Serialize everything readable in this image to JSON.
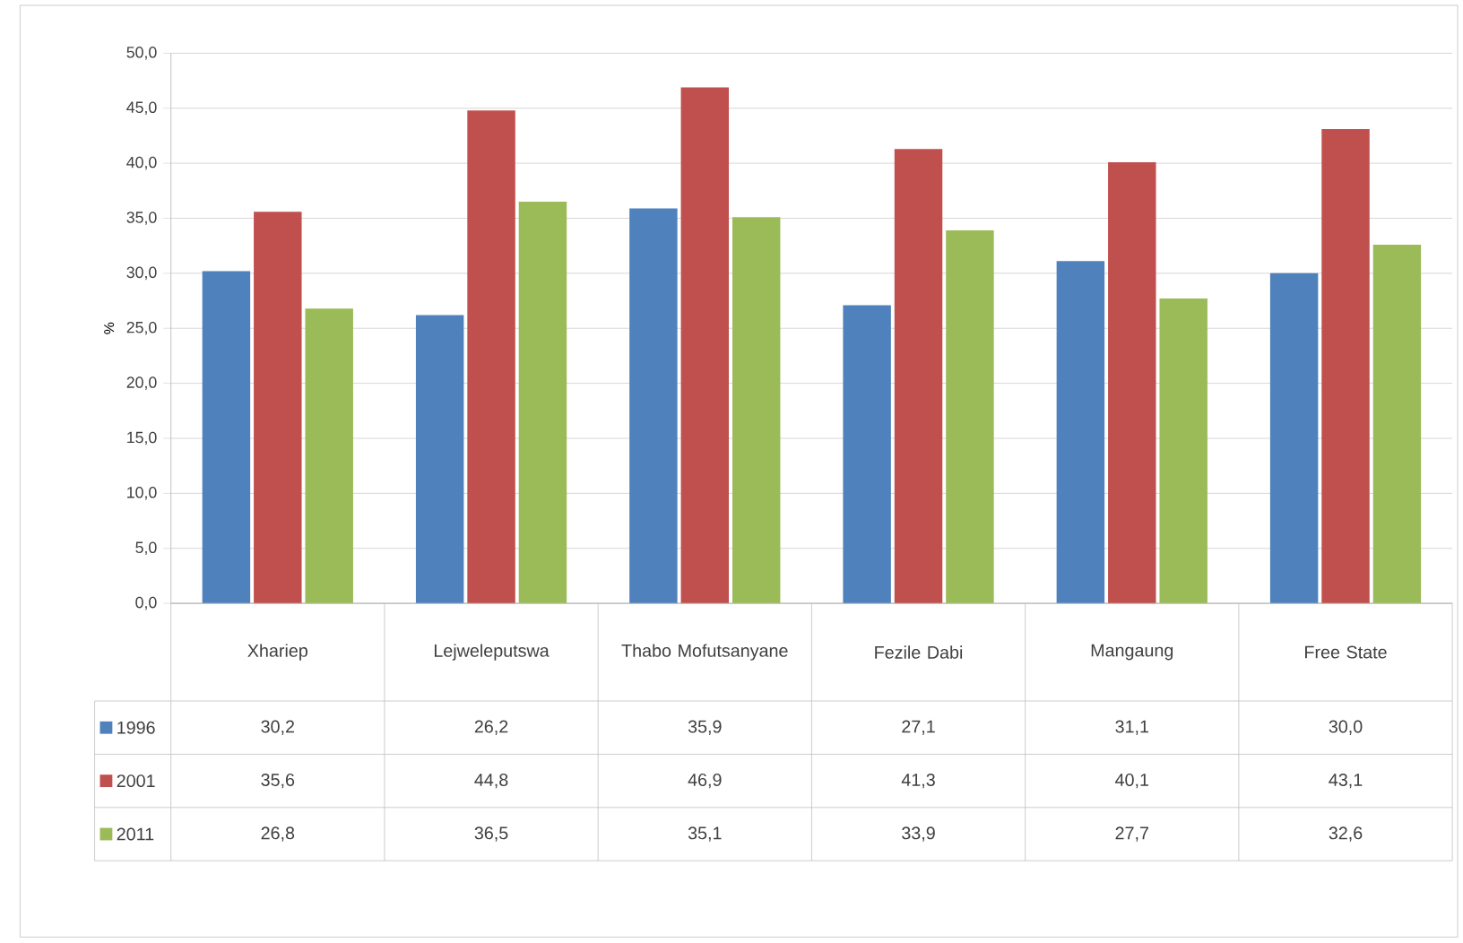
{
  "chart_data": {
    "type": "bar",
    "ylabel": "%",
    "categories": [
      "Xhariep",
      "Lejweleputswa",
      "Thabo Mofutsanyane",
      "Fezile Dabi",
      "Mangaung",
      "Free State"
    ],
    "series": [
      {
        "name": "1996",
        "color": "#4f81bd",
        "values": [
          30.2,
          26.2,
          35.9,
          27.1,
          31.1,
          30.0
        ],
        "value_labels": [
          "30,2",
          "26,2",
          "35,9",
          "27,1",
          "31,1",
          "30,0"
        ]
      },
      {
        "name": "2001",
        "color": "#c0504d",
        "values": [
          35.6,
          44.8,
          46.9,
          41.3,
          40.1,
          43.1
        ],
        "value_labels": [
          "35,6",
          "44,8",
          "46,9",
          "41,3",
          "40,1",
          "43,1"
        ]
      },
      {
        "name": "2011",
        "color": "#9bbb59",
        "values": [
          26.8,
          36.5,
          35.1,
          33.9,
          27.7,
          32.6
        ],
        "value_labels": [
          "26,8",
          "36,5",
          "35,1",
          "33,9",
          "27,7",
          "32,6"
        ]
      }
    ],
    "ylim": [
      0,
      50
    ],
    "yticks": [
      {
        "value": 0,
        "label": "0,0"
      },
      {
        "value": 5,
        "label": "5,0"
      },
      {
        "value": 10,
        "label": "10,0"
      },
      {
        "value": 15,
        "label": "15,0"
      },
      {
        "value": 20,
        "label": "20,0"
      },
      {
        "value": 25,
        "label": "25,0"
      },
      {
        "value": 30,
        "label": "30,0"
      },
      {
        "value": 35,
        "label": "35,0"
      },
      {
        "value": 40,
        "label": "40,0"
      },
      {
        "value": 45,
        "label": "45,0"
      },
      {
        "value": 50,
        "label": "50,0"
      }
    ],
    "grid": "y",
    "legend": "bottom left"
  }
}
